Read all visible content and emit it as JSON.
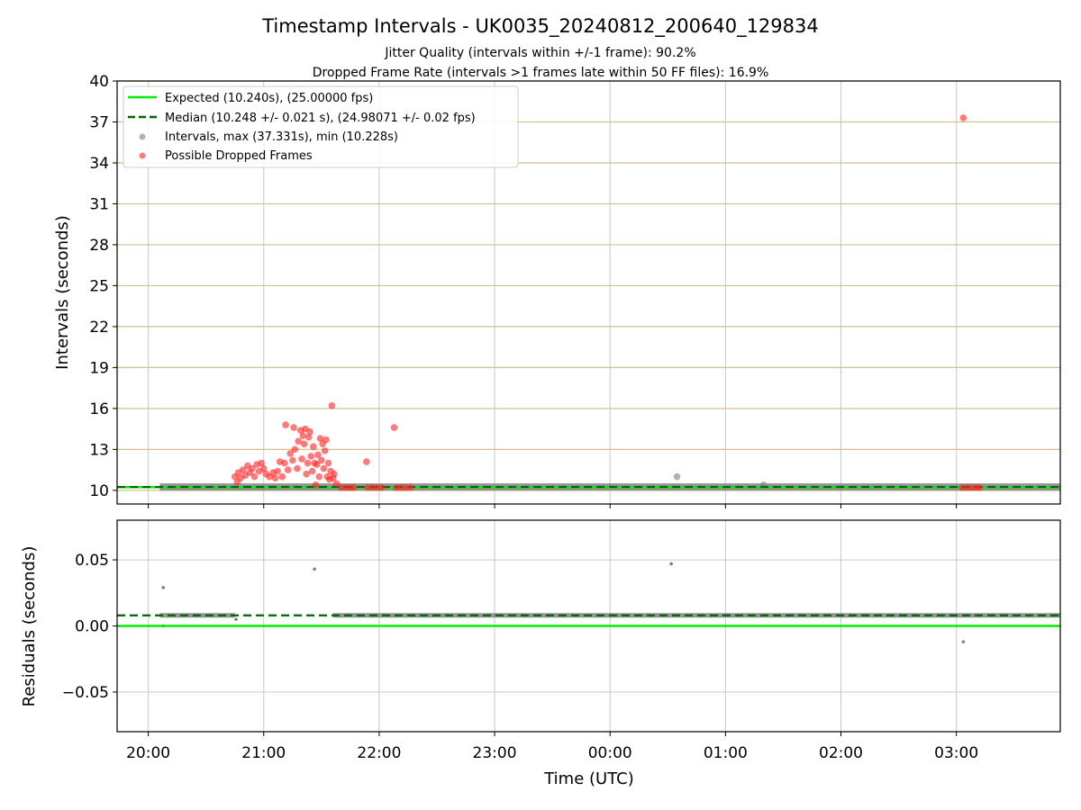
{
  "chart_data": {
    "type": "scatter",
    "title": "Timestamp Intervals - UK0035_20240812_200640_129834",
    "subtitle_lines": [
      "Jitter Quality (intervals within +/-1 frame): 90.2%",
      "Dropped Frame Rate (intervals >1 frames late within 50 FF files): 16.9%"
    ],
    "xlabel": "Time (UTC)",
    "x_ticks": [
      "20:00",
      "21:00",
      "22:00",
      "23:00",
      "00:00",
      "01:00",
      "02:00",
      "03:00"
    ],
    "x_tick_hours": [
      0,
      1,
      2,
      3,
      4,
      5,
      6,
      7
    ],
    "x_range_hours": [
      -0.27,
      7.9
    ],
    "top_panel": {
      "ylabel": "Intervals (seconds)",
      "ylim": [
        9,
        40
      ],
      "y_ticks": [
        "10",
        "13",
        "16",
        "19",
        "22",
        "25",
        "28",
        "31",
        "34",
        "37",
        "40"
      ],
      "legend_position": "top-left",
      "legend": [
        "Expected (10.240s), (25.00000 fps)",
        "Median (10.248 +/- 0.021 s), (24.98071 +/- 0.02 fps)",
        "Intervals, max (37.331s), min (10.228s)",
        "Possible Dropped Frames"
      ],
      "expected_value": 10.24,
      "median_value": 10.248,
      "interval_band": {
        "x_range_hours": [
          0.1,
          7.9
        ],
        "value": 10.248
      },
      "gray_outliers": [
        {
          "x": 4.58,
          "y": 11.0
        },
        {
          "x": 5.33,
          "y": 10.4
        }
      ],
      "dropped_frames": [
        {
          "x": 0.75,
          "y": 11.0
        },
        {
          "x": 0.77,
          "y": 10.6
        },
        {
          "x": 0.78,
          "y": 11.3
        },
        {
          "x": 0.8,
          "y": 10.9
        },
        {
          "x": 0.82,
          "y": 11.5
        },
        {
          "x": 0.84,
          "y": 11.1
        },
        {
          "x": 0.86,
          "y": 11.8
        },
        {
          "x": 0.88,
          "y": 11.3
        },
        {
          "x": 0.9,
          "y": 11.6
        },
        {
          "x": 0.92,
          "y": 11.0
        },
        {
          "x": 0.94,
          "y": 11.9
        },
        {
          "x": 0.96,
          "y": 11.4
        },
        {
          "x": 0.98,
          "y": 12.0
        },
        {
          "x": 1.0,
          "y": 11.6
        },
        {
          "x": 1.02,
          "y": 11.2
        },
        {
          "x": 1.05,
          "y": 11.0
        },
        {
          "x": 1.08,
          "y": 11.3
        },
        {
          "x": 1.1,
          "y": 10.9
        },
        {
          "x": 1.12,
          "y": 11.4
        },
        {
          "x": 1.14,
          "y": 12.1
        },
        {
          "x": 1.16,
          "y": 11.0
        },
        {
          "x": 1.18,
          "y": 12.0
        },
        {
          "x": 1.19,
          "y": 14.8
        },
        {
          "x": 1.21,
          "y": 11.5
        },
        {
          "x": 1.23,
          "y": 12.7
        },
        {
          "x": 1.25,
          "y": 12.2
        },
        {
          "x": 1.26,
          "y": 14.6
        },
        {
          "x": 1.27,
          "y": 13.0
        },
        {
          "x": 1.29,
          "y": 11.6
        },
        {
          "x": 1.3,
          "y": 13.6
        },
        {
          "x": 1.32,
          "y": 14.4
        },
        {
          "x": 1.33,
          "y": 12.3
        },
        {
          "x": 1.34,
          "y": 14.0
        },
        {
          "x": 1.35,
          "y": 13.4
        },
        {
          "x": 1.36,
          "y": 14.5
        },
        {
          "x": 1.37,
          "y": 11.2
        },
        {
          "x": 1.38,
          "y": 12.0
        },
        {
          "x": 1.39,
          "y": 13.9
        },
        {
          "x": 1.4,
          "y": 14.3
        },
        {
          "x": 1.41,
          "y": 12.5
        },
        {
          "x": 1.42,
          "y": 11.4
        },
        {
          "x": 1.43,
          "y": 13.2
        },
        {
          "x": 1.44,
          "y": 12.0
        },
        {
          "x": 1.45,
          "y": 10.4
        },
        {
          "x": 1.46,
          "y": 11.9
        },
        {
          "x": 1.47,
          "y": 12.6
        },
        {
          "x": 1.48,
          "y": 11.0
        },
        {
          "x": 1.49,
          "y": 13.8
        },
        {
          "x": 1.5,
          "y": 12.2
        },
        {
          "x": 1.51,
          "y": 13.4
        },
        {
          "x": 1.52,
          "y": 11.6
        },
        {
          "x": 1.53,
          "y": 12.9
        },
        {
          "x": 1.54,
          "y": 13.7
        },
        {
          "x": 1.55,
          "y": 11.0
        },
        {
          "x": 1.56,
          "y": 12.0
        },
        {
          "x": 1.57,
          "y": 10.8
        },
        {
          "x": 1.58,
          "y": 11.4
        },
        {
          "x": 1.59,
          "y": 16.2
        },
        {
          "x": 1.6,
          "y": 10.9
        },
        {
          "x": 1.61,
          "y": 11.2
        },
        {
          "x": 1.63,
          "y": 10.5
        },
        {
          "x": 1.67,
          "y": 10.2
        },
        {
          "x": 1.71,
          "y": 10.2
        },
        {
          "x": 1.75,
          "y": 10.2
        },
        {
          "x": 1.78,
          "y": 10.2
        },
        {
          "x": 1.89,
          "y": 12.1
        },
        {
          "x": 1.9,
          "y": 10.2
        },
        {
          "x": 1.94,
          "y": 10.2
        },
        {
          "x": 1.98,
          "y": 10.2
        },
        {
          "x": 2.02,
          "y": 10.2
        },
        {
          "x": 2.13,
          "y": 14.6
        },
        {
          "x": 2.15,
          "y": 10.2
        },
        {
          "x": 2.19,
          "y": 10.2
        },
        {
          "x": 2.23,
          "y": 10.2
        },
        {
          "x": 2.27,
          "y": 10.2
        },
        {
          "x": 7.06,
          "y": 37.3
        },
        {
          "x": 7.05,
          "y": 10.2
        },
        {
          "x": 7.09,
          "y": 10.2
        },
        {
          "x": 7.13,
          "y": 10.2
        },
        {
          "x": 7.17,
          "y": 10.2
        },
        {
          "x": 7.2,
          "y": 10.2
        }
      ]
    },
    "bottom_panel": {
      "ylabel": "Residuals (seconds)",
      "ylim": [
        -0.08,
        0.08
      ],
      "y_ticks": [
        "−0.05",
        "0.00",
        "0.05"
      ],
      "y_tick_values": [
        -0.05,
        0.0,
        0.05
      ],
      "expected_value": 0.0,
      "median_value": 0.008,
      "residual_segments": [
        {
          "x_range_hours": [
            0.1,
            0.75
          ],
          "value": 0.008
        },
        {
          "x_range_hours": [
            1.6,
            7.9
          ],
          "value": 0.008
        }
      ],
      "residual_outliers": [
        {
          "x": 0.13,
          "y": 0.029
        },
        {
          "x": 0.13,
          "y": 0.0
        },
        {
          "x": 0.76,
          "y": 0.005
        },
        {
          "x": 1.44,
          "y": 0.043
        },
        {
          "x": 4.53,
          "y": 0.047
        },
        {
          "x": 7.06,
          "y": -0.012
        }
      ]
    },
    "colors": {
      "expected": "#00ee00",
      "median": "#006400",
      "intervals": "#808080",
      "dropped": "#ff2222",
      "hgrid_top": "#d4c08a",
      "grid": "#c8c8c8"
    }
  }
}
